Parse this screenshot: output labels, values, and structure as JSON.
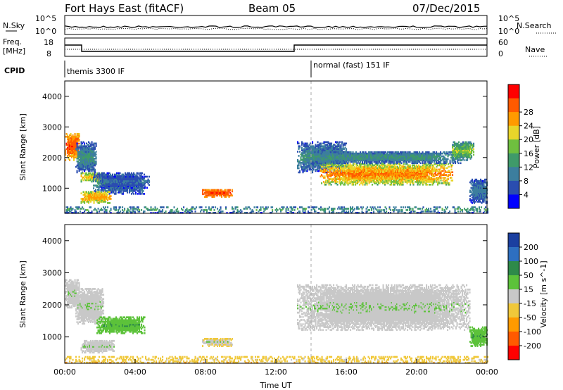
{
  "header": {
    "station": "Fort Hays East (fitACF)",
    "beam": "Beam 05",
    "date": "07/Dec/2015"
  },
  "noise_panel": {
    "left_label": "N.Sky",
    "right_label": "N.Search",
    "left_ticks": [
      "10^5",
      "10^0"
    ],
    "right_ticks": [
      "10^5",
      "10^0"
    ]
  },
  "freq_panel": {
    "left_label_top": "Freq.",
    "left_label_bottom": "[MHz]",
    "right_label": "Nave",
    "left_ticks": [
      "18",
      "8"
    ],
    "right_ticks": [
      "60",
      "0"
    ]
  },
  "cpid_panel": {
    "label": "CPID",
    "segments": [
      {
        "start_hour": 0.0,
        "end_hour": 14.0,
        "text": "themis 3300 IF"
      },
      {
        "start_hour": 14.0,
        "end_hour": 24.0,
        "text": "normal (fast) 151 IF"
      }
    ]
  },
  "colors": {
    "power": [
      "#0000ff",
      "#2a4db0",
      "#3c7e9e",
      "#3f9a6a",
      "#6fbf3f",
      "#e8d52a",
      "#ff9a00",
      "#ff5a00",
      "#ff0000"
    ],
    "velocity": [
      "#1b3fa0",
      "#2e6fc0",
      "#2e8a4a",
      "#5cc23a",
      "#c8c8c8",
      "#f0c83a",
      "#ff9a00",
      "#ff5a00",
      "#ff0000"
    ]
  },
  "chart_data": [
    {
      "type": "heatmap",
      "panel": "power",
      "ylabel": "Slant Range [km]",
      "xlim_hours": [
        0,
        24
      ],
      "ylim_km": [
        180,
        4500
      ],
      "yticks": [
        "1000",
        "2000",
        "3000",
        "4000"
      ],
      "colorbar": {
        "label": "Power [dB]",
        "ticks": [
          "4",
          "8",
          "12",
          "16",
          "20",
          "24",
          "28"
        ]
      },
      "regions": [
        {
          "t": [
            0.0,
            0.8
          ],
          "r": [
            1900,
            2800
          ],
          "v": [
            20,
            30
          ]
        },
        {
          "t": [
            0.6,
            1.8
          ],
          "r": [
            1500,
            2500
          ],
          "v": [
            4,
            14
          ]
        },
        {
          "t": [
            0.9,
            2.2
          ],
          "r": [
            1200,
            1500
          ],
          "v": [
            14,
            24
          ]
        },
        {
          "t": [
            1.6,
            4.5
          ],
          "r": [
            800,
            1500
          ],
          "v": [
            4,
            14
          ]
        },
        {
          "t": [
            0.9,
            2.6
          ],
          "r": [
            500,
            900
          ],
          "v": [
            16,
            26
          ]
        },
        {
          "t": [
            2.0,
            4.8
          ],
          "r": [
            1000,
            1400
          ],
          "v": [
            4,
            10
          ]
        },
        {
          "t": [
            7.8,
            9.5
          ],
          "r": [
            700,
            950
          ],
          "v": [
            24,
            30
          ]
        },
        {
          "t": [
            13.2,
            16.0
          ],
          "r": [
            1500,
            2500
          ],
          "v": [
            4,
            14
          ]
        },
        {
          "t": [
            14.5,
            22.0
          ],
          "r": [
            1100,
            1800
          ],
          "v": [
            14,
            28
          ]
        },
        {
          "t": [
            14.0,
            22.5
          ],
          "r": [
            1800,
            2200
          ],
          "v": [
            6,
            14
          ]
        },
        {
          "t": [
            22.0,
            23.2
          ],
          "r": [
            1900,
            2500
          ],
          "v": [
            8,
            20
          ]
        },
        {
          "t": [
            23.0,
            24.0
          ],
          "r": [
            500,
            1300
          ],
          "v": [
            4,
            12
          ]
        },
        {
          "t": [
            0.0,
            24.0
          ],
          "r": [
            180,
            400
          ],
          "v": [
            4,
            16
          ]
        }
      ]
    },
    {
      "type": "heatmap",
      "panel": "velocity",
      "ylabel": "Slant Range [km]",
      "xlabel": "Time UT",
      "xlim_hours": [
        0,
        24
      ],
      "ylim_km": [
        180,
        4500
      ],
      "xticks": [
        "00:00",
        "04:00",
        "08:00",
        "12:00",
        "16:00",
        "20:00",
        "00:00"
      ],
      "yticks": [
        "1000",
        "2000",
        "3000",
        "4000"
      ],
      "colorbar": {
        "label": "Velocity [m s^-1]",
        "ticks": [
          "200",
          "100",
          "50",
          "15",
          "-15",
          "-50",
          "-100",
          "-200"
        ]
      },
      "regions": [
        {
          "t": [
            0.0,
            0.8
          ],
          "r": [
            1900,
            2800
          ],
          "v": [
            -15,
            15
          ]
        },
        {
          "t": [
            0.6,
            2.2
          ],
          "r": [
            1400,
            2500
          ],
          "v": [
            -15,
            15
          ]
        },
        {
          "t": [
            1.8,
            4.5
          ],
          "r": [
            1100,
            1600
          ],
          "v": [
            15,
            50
          ]
        },
        {
          "t": [
            0.9,
            2.8
          ],
          "r": [
            500,
            900
          ],
          "v": [
            -15,
            15
          ]
        },
        {
          "t": [
            7.8,
            9.5
          ],
          "r": [
            700,
            950
          ],
          "v": [
            -50,
            15
          ]
        },
        {
          "t": [
            13.2,
            23.0
          ],
          "r": [
            1200,
            2600
          ],
          "v": [
            -15,
            15
          ]
        },
        {
          "t": [
            23.0,
            24.0
          ],
          "r": [
            700,
            1300
          ],
          "v": [
            15,
            50
          ]
        },
        {
          "t": [
            0.0,
            24.0
          ],
          "r": [
            180,
            400
          ],
          "v": [
            -60,
            -15
          ]
        }
      ]
    }
  ]
}
